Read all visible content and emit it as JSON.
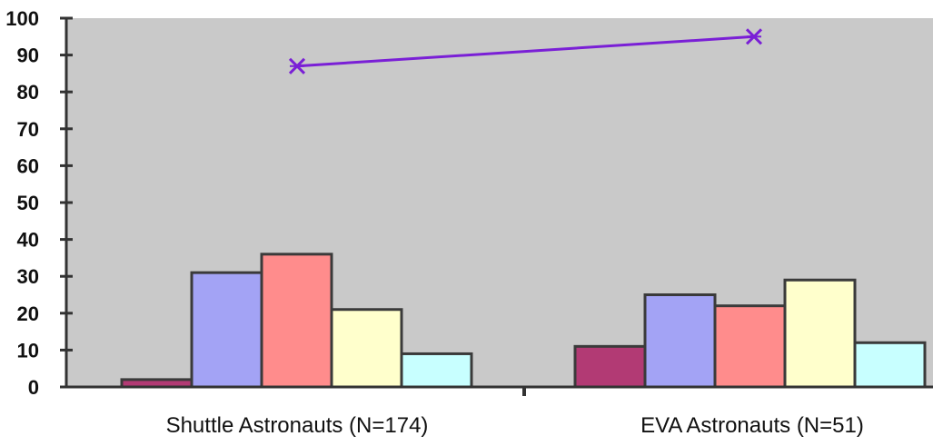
{
  "chart_data": {
    "type": "bar",
    "title": "",
    "xlabel": "",
    "ylabel": "",
    "categories": [
      "Shuttle Astronauts (N=174)",
      "EVA  Astronauts (N=51)"
    ],
    "series": [
      {
        "values": [
          2,
          11
        ],
        "color": "#b23a74"
      },
      {
        "values": [
          31,
          25
        ],
        "color": "#a3a3f5"
      },
      {
        "values": [
          36,
          22
        ],
        "color": "#ff8c8c"
      },
      {
        "values": [
          21,
          29
        ],
        "color": "#ffffcc"
      },
      {
        "values": [
          9,
          12
        ],
        "color": "#c8ffff"
      }
    ],
    "line_series": {
      "values": [
        87,
        95
      ],
      "color": "#7a1fd6",
      "marker": "x"
    },
    "ylim": [
      0,
      100
    ],
    "yticks": [
      "0",
      "10",
      "20",
      "30",
      "40",
      "50",
      "60",
      "70",
      "80",
      "90",
      "100"
    ],
    "plot_background": "#c9c9c9",
    "grid": false,
    "legend": "none"
  }
}
